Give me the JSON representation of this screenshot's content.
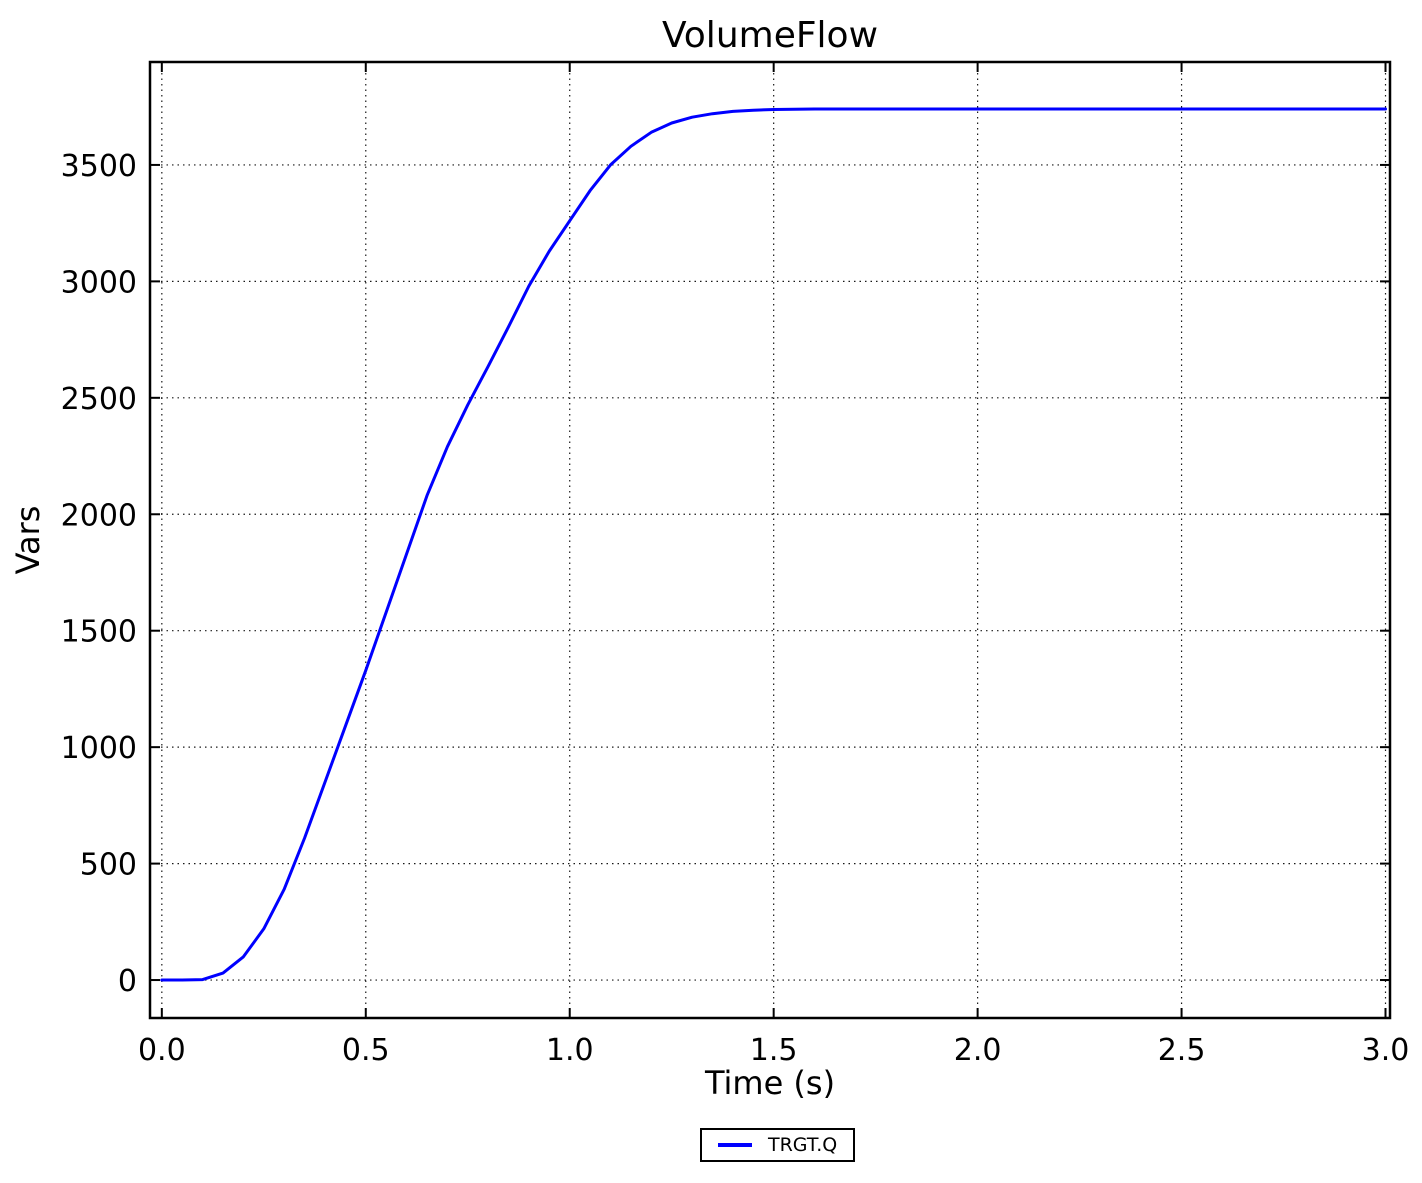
{
  "title": "VolumeFlow",
  "axes": {
    "xlabel": "Time (s)",
    "ylabel": "Vars"
  },
  "legend": {
    "entries": [
      {
        "label": "TRGT.Q",
        "color": "#0000ff"
      }
    ],
    "position": "bottom-center-outside"
  },
  "colors": {
    "line": "#0000ff",
    "text": "#000000",
    "background": "#ffffff",
    "grid": "#000000"
  },
  "chart_data": {
    "type": "line",
    "title": "VolumeFlow",
    "xlabel": "Time (s)",
    "ylabel": "Vars",
    "xlim": [
      -0.029,
      3.011
    ],
    "ylim": [
      -163,
      3942
    ],
    "xticks": [
      0.0,
      0.5,
      1.0,
      1.5,
      2.0,
      2.5,
      3.0
    ],
    "xtick_labels": [
      "0.0",
      "0.5",
      "1.0",
      "1.5",
      "2.0",
      "2.5",
      "3.0"
    ],
    "yticks": [
      0,
      500,
      1000,
      1500,
      2000,
      2500,
      3000,
      3500
    ],
    "ytick_labels": [
      "0",
      "500",
      "1000",
      "1500",
      "2000",
      "2500",
      "3000",
      "3500"
    ],
    "grid": true,
    "grid_style": "dotted",
    "legend_position": "lower center outside",
    "plateau_value": 3740,
    "series": [
      {
        "name": "TRGT.Q",
        "color": "#0000ff",
        "x": [
          0.0,
          0.05,
          0.1,
          0.15,
          0.2,
          0.25,
          0.3,
          0.35,
          0.4,
          0.45,
          0.5,
          0.55,
          0.6,
          0.65,
          0.7,
          0.75,
          0.8,
          0.85,
          0.9,
          0.95,
          1.0,
          1.05,
          1.1,
          1.15,
          1.2,
          1.25,
          1.3,
          1.35,
          1.4,
          1.45,
          1.5,
          1.6,
          1.7,
          1.8,
          2.0,
          2.2,
          2.4,
          2.6,
          2.8,
          3.0
        ],
        "y": [
          0,
          0,
          2,
          30,
          100,
          220,
          390,
          610,
          850,
          1090,
          1330,
          1580,
          1830,
          2080,
          2290,
          2470,
          2635,
          2805,
          2980,
          3130,
          3260,
          3390,
          3500,
          3580,
          3640,
          3680,
          3705,
          3720,
          3730,
          3735,
          3738,
          3740,
          3740,
          3740,
          3740,
          3740,
          3740,
          3740,
          3740,
          3740
        ]
      }
    ]
  }
}
